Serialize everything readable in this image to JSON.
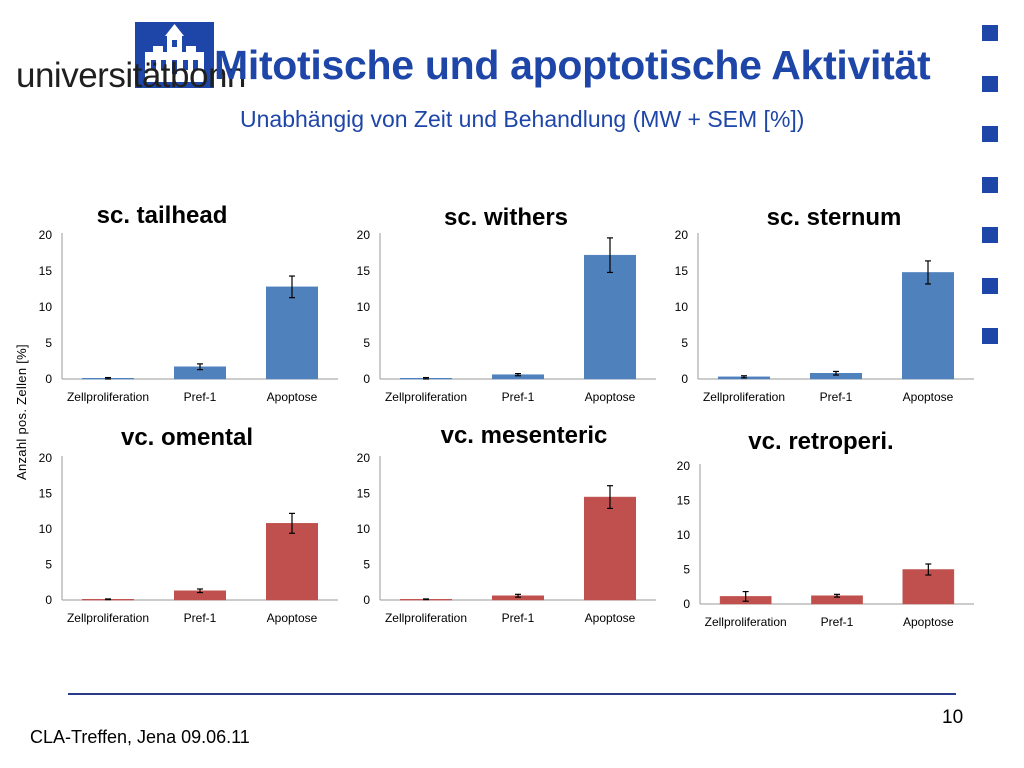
{
  "header": {
    "logo_text_a": "universität",
    "logo_text_b": "bonn",
    "title": "Mitotische und apoptotische Aktivität",
    "subtitle": "Unabhängig von Zeit und Behandlung (MW + SEM [%])"
  },
  "shared_ylabel": "Anzahl pos. Zellen [%]",
  "footer": {
    "text": "CLA-Treffen, Jena 09.06.11",
    "page": "10"
  },
  "colors": {
    "blue_bar": "#4f81bd",
    "red_bar": "#c0504d",
    "brand": "#1e46a8"
  },
  "chart_data": [
    {
      "type": "bar",
      "title": "sc. tailhead",
      "categories": [
        "Zellproliferation",
        "Pref-1",
        "Apoptose"
      ],
      "values": [
        0.1,
        1.7,
        12.8
      ],
      "errors": [
        0.1,
        0.4,
        1.5
      ],
      "ylim": [
        0,
        20
      ],
      "yticks": [
        "0",
        "5",
        "10",
        "15",
        "20"
      ],
      "color": "#4f81bd"
    },
    {
      "type": "bar",
      "title": "sc. withers",
      "categories": [
        "Zellproliferation",
        "Pref-1",
        "Apoptose"
      ],
      "values": [
        0.1,
        0.6,
        17.2
      ],
      "errors": [
        0.1,
        0.15,
        2.4
      ],
      "ylim": [
        0,
        20
      ],
      "yticks": [
        "0",
        "5",
        "10",
        "15",
        "20"
      ],
      "color": "#4f81bd"
    },
    {
      "type": "bar",
      "title": "sc. sternum",
      "categories": [
        "Zellproliferation",
        "Pref-1",
        "Apoptose"
      ],
      "values": [
        0.3,
        0.8,
        14.8
      ],
      "errors": [
        0.15,
        0.25,
        1.6
      ],
      "ylim": [
        0,
        20
      ],
      "yticks": [
        "0",
        "5",
        "10",
        "15",
        "20"
      ],
      "color": "#4f81bd"
    },
    {
      "type": "bar",
      "title": "vc. omental",
      "categories": [
        "Zellproliferation",
        "Pref-1",
        "Apoptose"
      ],
      "values": [
        0.1,
        1.3,
        10.8
      ],
      "errors": [
        0.05,
        0.25,
        1.4
      ],
      "ylim": [
        0,
        20
      ],
      "yticks": [
        "0",
        "5",
        "10",
        "15",
        "20"
      ],
      "color": "#c0504d"
    },
    {
      "type": "bar",
      "title": "vc. mesenteric",
      "categories": [
        "Zellproliferation",
        "Pref-1",
        "Apoptose"
      ],
      "values": [
        0.1,
        0.6,
        14.5
      ],
      "errors": [
        0.05,
        0.2,
        1.6
      ],
      "ylim": [
        0,
        20
      ],
      "yticks": [
        "0",
        "5",
        "10",
        "15",
        "20"
      ],
      "color": "#c0504d"
    },
    {
      "type": "bar",
      "title": "vc. retroperi.",
      "categories": [
        "Zellproliferation",
        "Pref-1",
        "Apoptose"
      ],
      "values": [
        1.1,
        1.2,
        5.0
      ],
      "errors": [
        0.7,
        0.2,
        0.8
      ],
      "ylim": [
        0,
        20
      ],
      "yticks": [
        "0",
        "5",
        "10",
        "15",
        "20"
      ],
      "color": "#c0504d"
    }
  ]
}
